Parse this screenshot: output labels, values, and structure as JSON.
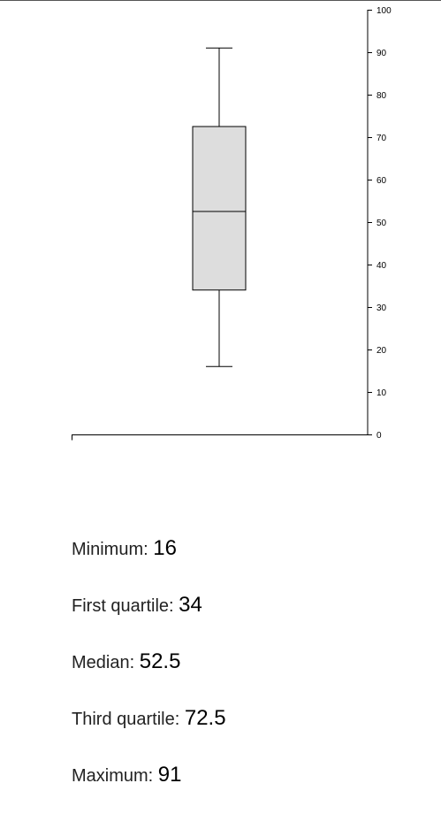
{
  "chart_data": {
    "type": "boxplot",
    "title": "",
    "xlabel": "",
    "ylabel": "",
    "ylim": [
      0,
      100
    ],
    "y_ticks": [
      "0",
      "10",
      "20",
      "30",
      "40",
      "50",
      "60",
      "70",
      "80",
      "90",
      "100"
    ],
    "y_axis_position": "right",
    "grid": false,
    "box": {
      "min": 16,
      "q1": 34,
      "median": 52.5,
      "q3": 72.5,
      "max": 91
    },
    "colors": {
      "box_fill": "#dddddd",
      "stroke": "#000000"
    }
  },
  "stats": [
    {
      "label": "Minimum: ",
      "value": "16"
    },
    {
      "label": "First quartile: ",
      "value": "34"
    },
    {
      "label": "Median: ",
      "value": "52.5"
    },
    {
      "label": "Third quartile: ",
      "value": "72.5"
    },
    {
      "label": "Maximum: ",
      "value": "91"
    }
  ]
}
